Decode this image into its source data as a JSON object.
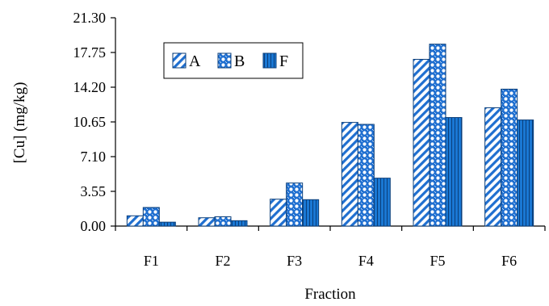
{
  "chart_data": {
    "type": "bar",
    "title": "",
    "xlabel": "Fraction",
    "ylabel": "[Cu] (mg/kg)",
    "categories": [
      "F1",
      "F2",
      "F3",
      "F4",
      "F5",
      "F6"
    ],
    "y_ticks": [
      "0.00",
      "3.55",
      "7.10",
      "10.65",
      "14.20",
      "17.75",
      "21.30"
    ],
    "ylim": [
      0,
      21.3
    ],
    "grid": false,
    "legend_position": "top-left",
    "series": [
      {
        "name": "A",
        "values": [
          1.05,
          0.85,
          2.75,
          10.6,
          17.05,
          12.1
        ],
        "pattern": "diagonal-hatch",
        "color": "#1f6fd0"
      },
      {
        "name": "B",
        "values": [
          1.9,
          0.95,
          4.4,
          10.4,
          18.6,
          14.0
        ],
        "pattern": "dotted",
        "color": "#1f6fd0"
      },
      {
        "name": "F",
        "values": [
          0.4,
          0.55,
          2.7,
          4.9,
          11.1,
          10.85
        ],
        "pattern": "vertical-lines",
        "color": "#1a78d4"
      }
    ]
  }
}
